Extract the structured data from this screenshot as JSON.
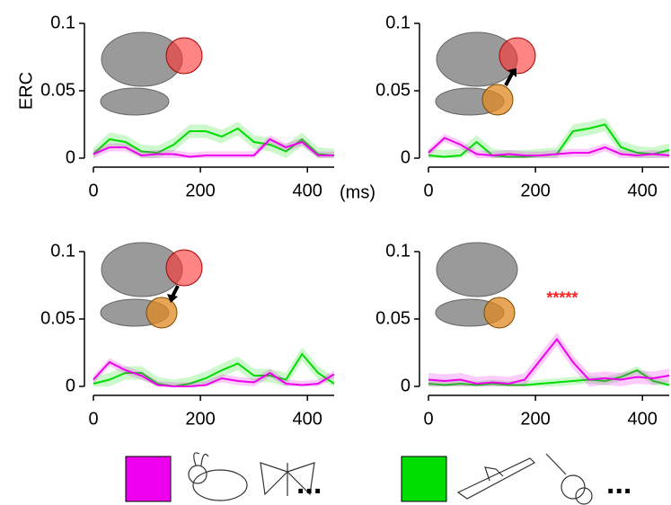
{
  "chart_data": [
    {
      "type": "line",
      "y_label": "ERC",
      "x_unit": "(ms)",
      "x": [
        0,
        30,
        60,
        90,
        120,
        150,
        180,
        210,
        240,
        270,
        300,
        330,
        360,
        390,
        420,
        450
      ],
      "xlim": [
        0,
        450
      ],
      "ylim": [
        0,
        0.1
      ],
      "xticks": [
        0,
        200,
        400
      ],
      "yticks": [
        0,
        0.05,
        0.1
      ],
      "series": [
        {
          "color": "#00dd00",
          "error": 0.005,
          "values": [
            0.003,
            0.014,
            0.012,
            0.005,
            0.004,
            0.01,
            0.02,
            0.02,
            0.016,
            0.022,
            0.012,
            0.01,
            0.005,
            0.014,
            0.003,
            0.002
          ]
        },
        {
          "color": "#ee00ee",
          "error": 0.003,
          "values": [
            0.003,
            0.008,
            0.008,
            0.002,
            0.003,
            0.003,
            0.001,
            0.002,
            0.002,
            0.002,
            0.002,
            0.014,
            0.008,
            0.012,
            0.002,
            0.002
          ]
        }
      ]
    },
    {
      "type": "line",
      "x": [
        0,
        30,
        60,
        90,
        120,
        150,
        180,
        210,
        240,
        270,
        300,
        330,
        360,
        390,
        420,
        450
      ],
      "xlim": [
        0,
        450
      ],
      "ylim": [
        0,
        0.1
      ],
      "xticks": [
        0,
        200,
        400
      ],
      "yticks": [
        0,
        0.05,
        0.1
      ],
      "series": [
        {
          "color": "#00dd00",
          "error": 0.005,
          "values": [
            0.002,
            0.001,
            0.002,
            0.012,
            0.002,
            0.001,
            0.001,
            0.002,
            0.003,
            0.02,
            0.022,
            0.025,
            0.008,
            0.004,
            0.003,
            0.006
          ]
        },
        {
          "color": "#ee00ee",
          "error": 0.003,
          "values": [
            0.004,
            0.015,
            0.01,
            0.003,
            0.002,
            0.003,
            0.002,
            0.002,
            0.003,
            0.004,
            0.004,
            0.008,
            0.003,
            0.002,
            0.003,
            0.002
          ]
        }
      ]
    },
    {
      "type": "line",
      "x": [
        0,
        30,
        60,
        90,
        120,
        150,
        180,
        210,
        240,
        270,
        300,
        330,
        360,
        390,
        420,
        450
      ],
      "xlim": [
        0,
        450
      ],
      "ylim": [
        0,
        0.1
      ],
      "xticks": [
        0,
        200,
        400
      ],
      "yticks": [
        0,
        0.05,
        0.1
      ],
      "series": [
        {
          "color": "#00dd00",
          "error": 0.005,
          "values": [
            0.002,
            0.005,
            0.01,
            0.01,
            0.002,
            0,
            0.002,
            0.006,
            0.012,
            0.017,
            0.008,
            0.008,
            0.005,
            0.024,
            0.01,
            0.002
          ]
        },
        {
          "color": "#ee00ee",
          "error": 0.003,
          "values": [
            0.005,
            0.018,
            0.012,
            0.008,
            0.001,
            0,
            0,
            0.001,
            0.006,
            0.004,
            0.003,
            0.01,
            0.002,
            0.001,
            0.002,
            0.009
          ]
        }
      ]
    },
    {
      "type": "line",
      "x": [
        0,
        30,
        60,
        90,
        120,
        150,
        180,
        210,
        240,
        270,
        300,
        330,
        360,
        390,
        420,
        450
      ],
      "xlim": [
        0,
        450
      ],
      "ylim": [
        0,
        0.1
      ],
      "xticks": [
        0,
        200,
        400
      ],
      "yticks": [
        0,
        0.05,
        0.1
      ],
      "annotation": {
        "text": "*****",
        "x": 250,
        "y": 0.065
      },
      "series": [
        {
          "color": "#00dd00",
          "error": 0.003,
          "values": [
            0.002,
            0.001,
            0.002,
            0.001,
            0.002,
            0.001,
            0.001,
            0.002,
            0.003,
            0.004,
            0.005,
            0.004,
            0.007,
            0.012,
            0.004,
            0.001
          ]
        },
        {
          "color": "#ee00ee",
          "error": 0.005,
          "values": [
            0.005,
            0.004,
            0.005,
            0.002,
            0.003,
            0.002,
            0.005,
            0.02,
            0.035,
            0.018,
            0.005,
            0.006,
            0.005,
            0.007,
            0.006,
            0.008
          ]
        }
      ]
    }
  ],
  "legend": [
    {
      "more": "..."
    },
    {
      "more": "..."
    }
  ]
}
